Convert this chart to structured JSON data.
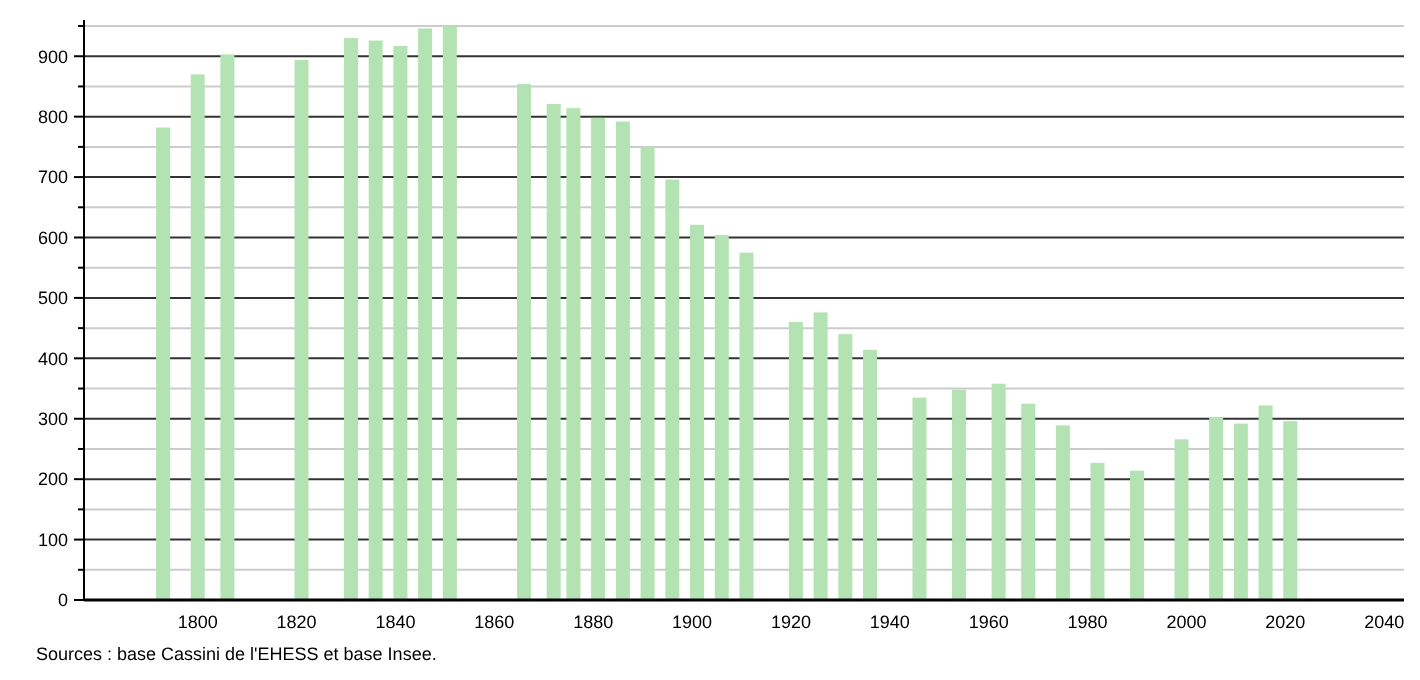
{
  "chart_data": {
    "type": "bar",
    "x": [
      1793,
      1800,
      1806,
      1821,
      1831,
      1836,
      1841,
      1846,
      1851,
      1866,
      1872,
      1876,
      1881,
      1886,
      1891,
      1896,
      1901,
      1906,
      1911,
      1921,
      1926,
      1931,
      1936,
      1946,
      1954,
      1962,
      1968,
      1975,
      1982,
      1990,
      1999,
      2006,
      2011,
      2016,
      2021
    ],
    "values": [
      782,
      870,
      903,
      894,
      930,
      926,
      917,
      946,
      950,
      854,
      821,
      814,
      798,
      792,
      749,
      696,
      621,
      604,
      575,
      460,
      476,
      440,
      414,
      335,
      348,
      358,
      325,
      289,
      227,
      214,
      266,
      302,
      292,
      322,
      296
    ],
    "color": "#b3e2b3",
    "xlim": [
      1777,
      2044
    ],
    "xticks": [
      1800,
      1820,
      1840,
      1860,
      1880,
      1900,
      1920,
      1940,
      1960,
      1980,
      2000,
      2020,
      2040
    ],
    "ylim": [
      0,
      960
    ],
    "yticks": [
      0,
      {
        "value": 50,
        "label": null
      },
      100,
      {
        "value": 150,
        "label": null
      },
      200,
      {
        "value": 250,
        "label": null
      },
      300,
      {
        "value": 350,
        "label": null
      },
      400,
      {
        "value": 450,
        "label": null
      },
      500,
      {
        "value": 550,
        "label": null
      },
      600,
      {
        "value": 650,
        "label": null
      },
      700,
      {
        "value": 750,
        "label": null
      },
      800,
      {
        "value": 850,
        "label": null
      },
      900,
      {
        "value": 950,
        "label": null
      }
    ],
    "grid": "y",
    "annotations": [
      "Sources : base Cassini de l'EHESS et base Insee."
    ]
  }
}
